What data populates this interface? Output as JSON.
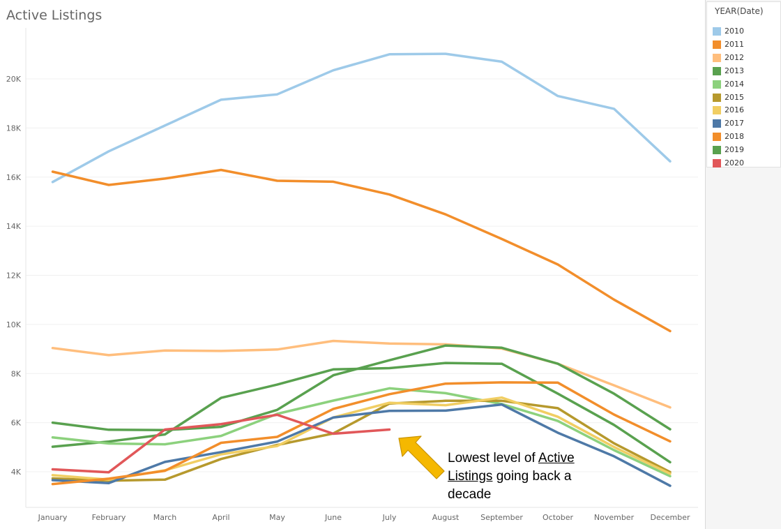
{
  "chart_data": {
    "type": "line",
    "title": "Active Listings",
    "xlabel": "",
    "ylabel": "",
    "categories": [
      "January",
      "February",
      "March",
      "April",
      "May",
      "June",
      "July",
      "August",
      "September",
      "October",
      "November",
      "December"
    ],
    "ylim": [
      2800,
      22100
    ],
    "yticks": [
      4000,
      6000,
      8000,
      10000,
      12000,
      14000,
      16000,
      18000,
      20000
    ],
    "ytick_labels": [
      "4K",
      "6K",
      "8K",
      "10K",
      "12K",
      "14K",
      "16K",
      "18K",
      "20K"
    ],
    "grid": true,
    "legend_title": "YEAR(Date)",
    "legend_position": "top-right",
    "series": [
      {
        "name": "2010",
        "color": "#9ecae9",
        "values": [
          15800,
          17050,
          18100,
          19150,
          19370,
          20350,
          21000,
          21020,
          20700,
          19300,
          18780,
          16640
        ]
      },
      {
        "name": "2011",
        "color": "#f28e2b",
        "values": [
          16220,
          15680,
          15940,
          16290,
          15850,
          15810,
          15290,
          14480,
          13480,
          12440,
          11010,
          9730
        ]
      },
      {
        "name": "2012",
        "color": "#ffbe7d",
        "values": [
          9040,
          8750,
          8940,
          8920,
          8980,
          9330,
          9220,
          9190,
          9020,
          8400,
          7520,
          6620
        ]
      },
      {
        "name": "2013",
        "color": "#59a14f",
        "values": [
          5020,
          5230,
          5520,
          7010,
          7550,
          8170,
          8220,
          8430,
          8400,
          7180,
          5910,
          4390
        ]
      },
      {
        "name": "2014",
        "color": "#8cd17d",
        "values": [
          5400,
          5150,
          5120,
          5460,
          6360,
          6900,
          7400,
          7200,
          6760,
          6070,
          4880,
          3820
        ]
      },
      {
        "name": "2015",
        "color": "#b6992d",
        "values": [
          3730,
          3640,
          3680,
          4520,
          5090,
          5560,
          6780,
          6890,
          6890,
          6590,
          5160,
          3990
        ]
      },
      {
        "name": "2016",
        "color": "#f1ce63",
        "values": [
          3860,
          3680,
          4060,
          4710,
          5050,
          6210,
          6810,
          6710,
          7020,
          6240,
          5010,
          3920
        ]
      },
      {
        "name": "2017",
        "color": "#4e79a7",
        "values": [
          3660,
          3540,
          4400,
          4800,
          5230,
          6210,
          6480,
          6490,
          6740,
          5590,
          4630,
          3430
        ]
      },
      {
        "name": "2018",
        "color": "#f28e2b",
        "values": [
          3500,
          3720,
          4040,
          5180,
          5420,
          6560,
          7160,
          7590,
          7640,
          7630,
          6330,
          5240
        ]
      },
      {
        "name": "2019",
        "color": "#59a14f",
        "values": [
          6000,
          5710,
          5700,
          5830,
          6520,
          7930,
          8540,
          9140,
          9050,
          8400,
          7180,
          5730
        ]
      },
      {
        "name": "2020",
        "color": "#e15759",
        "values": [
          4100,
          3980,
          5720,
          5940,
          6320,
          5550,
          5720,
          null,
          null,
          null,
          null,
          null
        ]
      }
    ]
  },
  "annotation": {
    "text_before": "Lowest level of ",
    "underlined_1": "Active",
    "underlined_2": "Listings",
    "text_after": " going back a decade",
    "arrow_color": "#f5b800"
  }
}
